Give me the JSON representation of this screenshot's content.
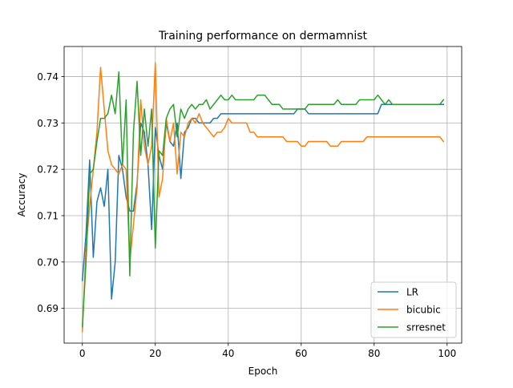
{
  "chart_data": {
    "type": "line",
    "title": "Training performance on dermamnist",
    "xlabel": "Epoch",
    "ylabel": "Accuracy",
    "xlim": [
      -5,
      104
    ],
    "ylim": [
      0.6825,
      0.7465
    ],
    "xticks": [
      0,
      20,
      40,
      60,
      80,
      100
    ],
    "yticks": [
      0.69,
      0.7,
      0.71,
      0.72,
      0.73,
      0.74
    ],
    "grid": true,
    "legend_position": "lower-right",
    "series": [
      {
        "name": "LR",
        "color": "#1f77b4",
        "x": [
          0,
          1,
          2,
          3,
          4,
          5,
          6,
          7,
          8,
          9,
          10,
          11,
          12,
          13,
          14,
          15,
          16,
          17,
          18,
          19,
          20,
          21,
          22,
          23,
          24,
          25,
          26,
          27,
          28,
          29,
          30,
          31,
          32,
          33,
          34,
          35,
          36,
          37,
          38,
          39,
          40,
          41,
          42,
          43,
          44,
          45,
          46,
          47,
          48,
          49,
          50,
          51,
          52,
          53,
          54,
          55,
          56,
          57,
          58,
          59,
          60,
          61,
          62,
          63,
          64,
          65,
          66,
          67,
          68,
          69,
          70,
          71,
          72,
          73,
          74,
          75,
          76,
          77,
          78,
          79,
          80,
          81,
          82,
          83,
          84,
          85,
          86,
          87,
          88,
          89,
          90,
          91,
          92,
          93,
          94,
          95,
          96,
          97,
          98,
          99
        ],
        "y": [
          0.696,
          0.706,
          0.722,
          0.701,
          0.713,
          0.716,
          0.712,
          0.72,
          0.692,
          0.7,
          0.723,
          0.72,
          0.714,
          0.711,
          0.711,
          0.717,
          0.73,
          0.728,
          0.721,
          0.707,
          0.729,
          0.723,
          0.72,
          0.73,
          0.726,
          0.725,
          0.73,
          0.718,
          0.728,
          0.729,
          0.731,
          0.731,
          0.73,
          0.73,
          0.73,
          0.73,
          0.731,
          0.731,
          0.732,
          0.732,
          0.732,
          0.732,
          0.732,
          0.732,
          0.732,
          0.732,
          0.732,
          0.732,
          0.732,
          0.732,
          0.732,
          0.732,
          0.732,
          0.732,
          0.732,
          0.732,
          0.732,
          0.732,
          0.732,
          0.733,
          0.733,
          0.733,
          0.732,
          0.732,
          0.732,
          0.732,
          0.732,
          0.732,
          0.732,
          0.732,
          0.732,
          0.732,
          0.732,
          0.732,
          0.732,
          0.732,
          0.732,
          0.732,
          0.732,
          0.732,
          0.732,
          0.732,
          0.734,
          0.734,
          0.734,
          0.734,
          0.734,
          0.734,
          0.734,
          0.734,
          0.734,
          0.734,
          0.734,
          0.734,
          0.734,
          0.734,
          0.734,
          0.734,
          0.734,
          0.734
        ]
      },
      {
        "name": "bicubic",
        "color": "#ff7f0e",
        "x": [
          0,
          1,
          2,
          3,
          4,
          5,
          6,
          7,
          8,
          9,
          10,
          11,
          12,
          13,
          14,
          15,
          16,
          17,
          18,
          19,
          20,
          21,
          22,
          23,
          24,
          25,
          26,
          27,
          28,
          29,
          30,
          31,
          32,
          33,
          34,
          35,
          36,
          37,
          38,
          39,
          40,
          41,
          42,
          43,
          44,
          45,
          46,
          47,
          48,
          49,
          50,
          51,
          52,
          53,
          54,
          55,
          56,
          57,
          58,
          59,
          60,
          61,
          62,
          63,
          64,
          65,
          66,
          67,
          68,
          69,
          70,
          71,
          72,
          73,
          74,
          75,
          76,
          77,
          78,
          79,
          80,
          81,
          82,
          83,
          84,
          85,
          86,
          87,
          88,
          89,
          90,
          91,
          92,
          93,
          94,
          95,
          96,
          97,
          98,
          99
        ],
        "y": [
          0.685,
          0.703,
          0.712,
          0.72,
          0.728,
          0.742,
          0.733,
          0.724,
          0.721,
          0.72,
          0.719,
          0.721,
          0.72,
          0.7,
          0.708,
          0.716,
          0.735,
          0.725,
          0.721,
          0.725,
          0.743,
          0.714,
          0.718,
          0.731,
          0.726,
          0.73,
          0.719,
          0.728,
          0.727,
          0.73,
          0.731,
          0.73,
          0.732,
          0.73,
          0.729,
          0.728,
          0.727,
          0.728,
          0.728,
          0.729,
          0.731,
          0.73,
          0.73,
          0.73,
          0.73,
          0.73,
          0.728,
          0.728,
          0.727,
          0.727,
          0.727,
          0.727,
          0.727,
          0.727,
          0.727,
          0.727,
          0.726,
          0.726,
          0.726,
          0.726,
          0.725,
          0.725,
          0.726,
          0.726,
          0.726,
          0.726,
          0.726,
          0.726,
          0.725,
          0.725,
          0.725,
          0.726,
          0.726,
          0.726,
          0.726,
          0.726,
          0.726,
          0.726,
          0.727,
          0.727,
          0.727,
          0.727,
          0.727,
          0.727,
          0.727,
          0.727,
          0.727,
          0.727,
          0.727,
          0.727,
          0.727,
          0.727,
          0.727,
          0.727,
          0.727,
          0.727,
          0.727,
          0.727,
          0.727,
          0.726
        ]
      },
      {
        "name": "srresnet",
        "color": "#2ca02c",
        "x": [
          0,
          1,
          2,
          3,
          4,
          5,
          6,
          7,
          8,
          9,
          10,
          11,
          12,
          13,
          14,
          15,
          16,
          17,
          18,
          19,
          20,
          21,
          22,
          23,
          24,
          25,
          26,
          27,
          28,
          29,
          30,
          31,
          32,
          33,
          34,
          35,
          36,
          37,
          38,
          39,
          40,
          41,
          42,
          43,
          44,
          45,
          46,
          47,
          48,
          49,
          50,
          51,
          52,
          53,
          54,
          55,
          56,
          57,
          58,
          59,
          60,
          61,
          62,
          63,
          64,
          65,
          66,
          67,
          68,
          69,
          70,
          71,
          72,
          73,
          74,
          75,
          76,
          77,
          78,
          79,
          80,
          81,
          82,
          83,
          84,
          85,
          86,
          87,
          88,
          89,
          90,
          91,
          92,
          93,
          94,
          95,
          96,
          97,
          98,
          99
        ],
        "y": [
          0.686,
          0.7,
          0.719,
          0.72,
          0.726,
          0.731,
          0.731,
          0.732,
          0.736,
          0.732,
          0.741,
          0.721,
          0.735,
          0.697,
          0.728,
          0.739,
          0.723,
          0.733,
          0.725,
          0.733,
          0.703,
          0.724,
          0.723,
          0.731,
          0.733,
          0.734,
          0.727,
          0.733,
          0.731,
          0.733,
          0.734,
          0.733,
          0.734,
          0.734,
          0.735,
          0.733,
          0.734,
          0.735,
          0.736,
          0.735,
          0.735,
          0.736,
          0.735,
          0.735,
          0.735,
          0.735,
          0.735,
          0.735,
          0.736,
          0.736,
          0.736,
          0.735,
          0.734,
          0.734,
          0.734,
          0.733,
          0.733,
          0.733,
          0.733,
          0.733,
          0.733,
          0.733,
          0.734,
          0.734,
          0.734,
          0.734,
          0.734,
          0.734,
          0.734,
          0.734,
          0.735,
          0.734,
          0.734,
          0.734,
          0.734,
          0.734,
          0.735,
          0.735,
          0.735,
          0.735,
          0.735,
          0.736,
          0.735,
          0.734,
          0.735,
          0.734,
          0.734,
          0.734,
          0.734,
          0.734,
          0.734,
          0.734,
          0.734,
          0.734,
          0.734,
          0.734,
          0.734,
          0.734,
          0.734,
          0.735
        ]
      }
    ]
  }
}
